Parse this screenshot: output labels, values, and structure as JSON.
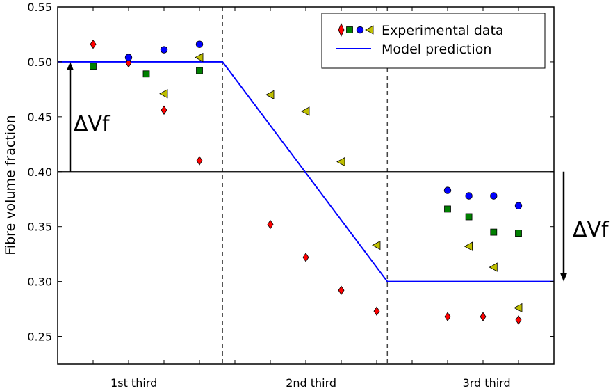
{
  "chart_data": {
    "type": "scatter",
    "title": "",
    "xlabel": "",
    "ylabel": "Fibre volume fraction",
    "ylim": [
      0.225,
      0.55
    ],
    "xlim": [
      0,
      14
    ],
    "yticks": [
      "0.25",
      "0.30",
      "0.35",
      "0.40",
      "0.45",
      "0.50",
      "0.55"
    ],
    "categories": [
      {
        "label": "1st third",
        "x": 2.15
      },
      {
        "label": "2nd third",
        "x": 7.15
      },
      {
        "label": "3rd third",
        "x": 12.1
      }
    ],
    "grid": false,
    "legend_position": "top-right",
    "legend": {
      "experimental_label": "Experimental data",
      "model_label": "Model prediction"
    },
    "series": [
      {
        "marker": "diamond",
        "color": "#ff0000",
        "points": [
          [
            1,
            0.516
          ],
          [
            2,
            0.499
          ],
          [
            3,
            0.456
          ],
          [
            4,
            0.41
          ],
          [
            6,
            0.352
          ],
          [
            7,
            0.322
          ],
          [
            8,
            0.292
          ],
          [
            9,
            0.273
          ],
          [
            11,
            0.268
          ],
          [
            12,
            0.268
          ],
          [
            13,
            0.265
          ]
        ]
      },
      {
        "marker": "square",
        "color": "#008000",
        "points": [
          [
            1,
            0.496
          ],
          [
            2.5,
            0.489
          ],
          [
            4,
            0.492
          ],
          [
            11,
            0.366
          ],
          [
            11.6,
            0.359
          ],
          [
            12.3,
            0.345
          ],
          [
            13,
            0.344
          ]
        ]
      },
      {
        "marker": "circle",
        "color": "#0000ff",
        "points": [
          [
            2,
            0.504
          ],
          [
            3,
            0.511
          ],
          [
            4,
            0.516
          ],
          [
            11,
            0.383
          ],
          [
            11.6,
            0.378
          ],
          [
            12.3,
            0.378
          ],
          [
            13,
            0.369
          ]
        ]
      },
      {
        "marker": "triangle-left",
        "color": "#bfbf00",
        "points": [
          [
            3,
            0.471
          ],
          [
            4,
            0.504
          ],
          [
            6,
            0.47
          ],
          [
            7,
            0.455
          ],
          [
            8,
            0.409
          ],
          [
            9,
            0.333
          ],
          [
            11.6,
            0.332
          ],
          [
            12.3,
            0.313
          ],
          [
            13,
            0.276
          ]
        ]
      }
    ],
    "model_prediction": {
      "color": "#0000ff",
      "points": [
        [
          0,
          0.5
        ],
        [
          4.65,
          0.5
        ],
        [
          9.3,
          0.3
        ],
        [
          14,
          0.3
        ]
      ]
    },
    "reference_line": {
      "y": 0.4
    },
    "region_dividers": [
      4.65,
      9.3
    ],
    "annotations": [
      {
        "text": "ΔVf",
        "side": "left",
        "from": 0.4,
        "to": 0.5
      },
      {
        "text": "ΔVf",
        "side": "right",
        "from": 0.4,
        "to": 0.3
      }
    ]
  }
}
